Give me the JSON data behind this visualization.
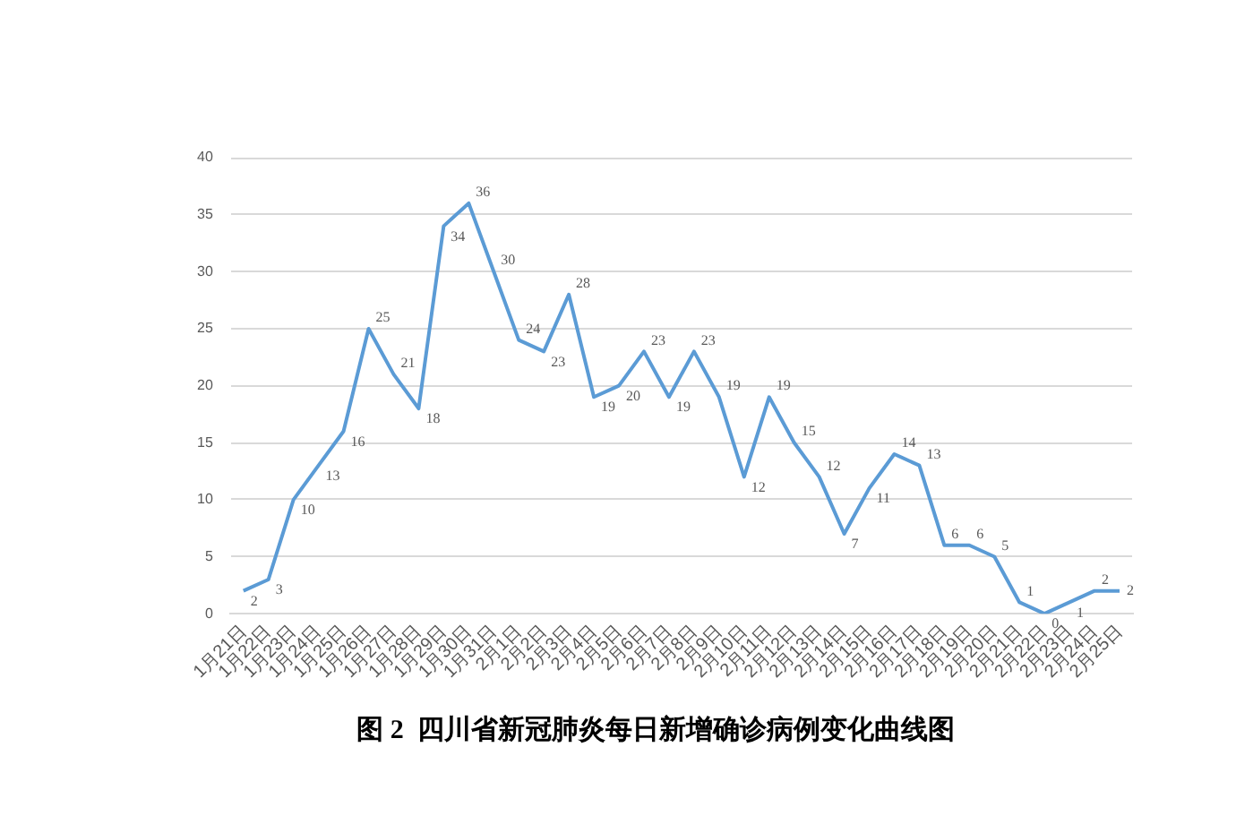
{
  "chart_data": {
    "type": "line",
    "title": "图 2  四川省新冠肺炎每日新增确诊病例变化曲线图",
    "categories": [
      "1月21日",
      "1月22日",
      "1月23日",
      "1月24日",
      "1月25日",
      "1月26日",
      "1月27日",
      "1月28日",
      "1月29日",
      "1月30日",
      "1月31日",
      "2月1日",
      "2月2日",
      "2月3日",
      "2月4日",
      "2月5日",
      "2月6日",
      "2月7日",
      "2月8日",
      "2月9日",
      "2月10日",
      "2月11日",
      "2月12日",
      "2月13日",
      "2月14日",
      "2月15日",
      "2月16日",
      "2月17日",
      "2月18日",
      "2月19日",
      "2月20日",
      "2月21日",
      "2月22日",
      "2月23日",
      "2月24日",
      "2月25日"
    ],
    "series": [
      {
        "color": "#5b9bd5",
        "values": [
          2,
          3,
          10,
          13,
          16,
          25,
          21,
          18,
          34,
          36,
          30,
          24,
          23,
          28,
          19,
          20,
          23,
          19,
          23,
          19,
          12,
          19,
          15,
          12,
          7,
          11,
          14,
          13,
          6,
          6,
          5,
          1,
          0,
          1,
          2,
          2
        ]
      }
    ],
    "ylim": [
      0,
      40
    ],
    "yticks": [
      0,
      5,
      10,
      15,
      20,
      25,
      30,
      35,
      40
    ],
    "grid": "y",
    "data_labels": true,
    "marker": "none"
  }
}
